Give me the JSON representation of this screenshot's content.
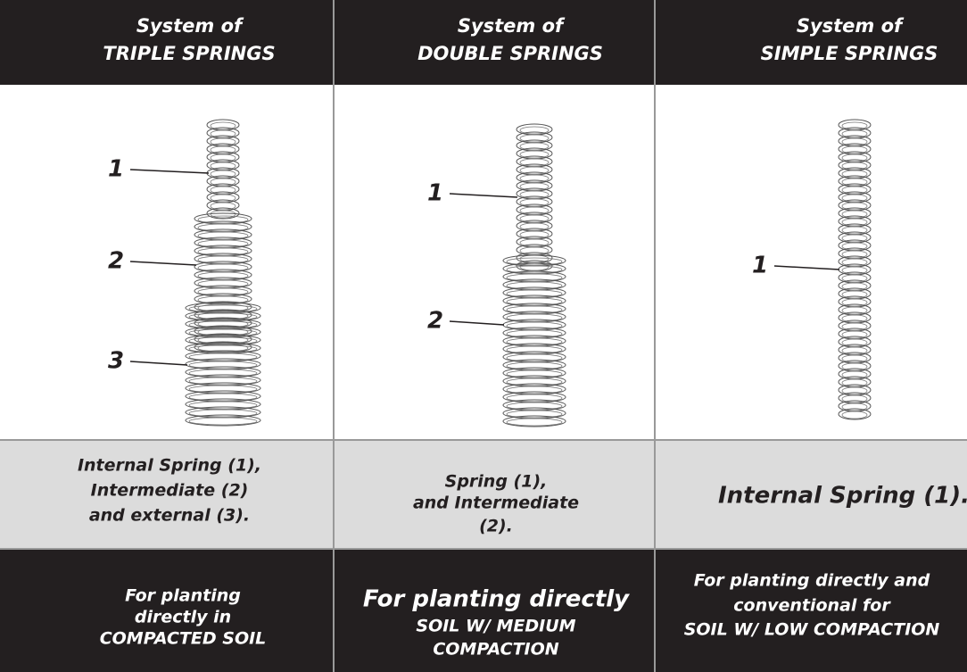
{
  "columns": [
    {
      "header": [
        "System of",
        "TRIPLE SPRINGS"
      ],
      "callouts": [
        "1",
        "2",
        "3"
      ],
      "description": [
        "Internal Spring (1),",
        "Intermediate (2)",
        "and external (3)."
      ],
      "use": [
        "For planting",
        "directly in",
        "COMPACTED SOIL"
      ]
    },
    {
      "header": [
        "System of",
        "DOUBLE SPRINGS"
      ],
      "callouts": [
        "1",
        "2"
      ],
      "description": [
        "Spring (1),",
        "and Intermediate",
        "(2)."
      ],
      "use": [
        "For planting directly",
        "SOIL W/ MEDIUM",
        "COMPACTION"
      ]
    },
    {
      "header": [
        "System of",
        "SIMPLE SPRINGS"
      ],
      "callouts": [
        "1"
      ],
      "description": [
        "Internal Spring (1)."
      ],
      "use": [
        "For planting directly and",
        "conventional for",
        "SOIL W/ LOW COMPACTION"
      ]
    }
  ]
}
